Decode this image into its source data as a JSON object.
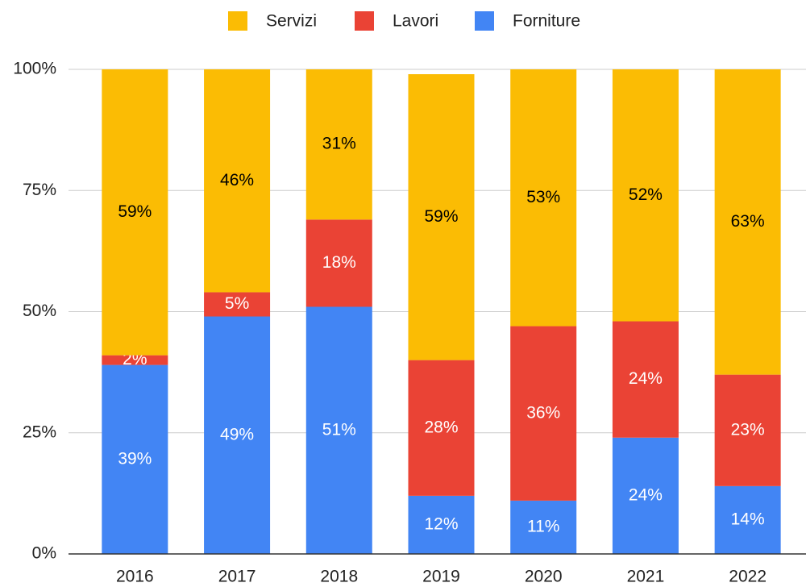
{
  "chart_data": {
    "type": "stacked_bar_100",
    "categories": [
      "2016",
      "2017",
      "2018",
      "2019",
      "2020",
      "2021",
      "2022"
    ],
    "series": [
      {
        "name": "Servizi",
        "color": "#fbbc04",
        "label_color": "#000000",
        "values": [
          59,
          46,
          31,
          59,
          53,
          52,
          63
        ],
        "value_labels": [
          "59%",
          "46%",
          "31%",
          "59%",
          "53%",
          "52%",
          "63%"
        ]
      },
      {
        "name": "Lavori",
        "color": "#ea4335",
        "label_color": "#ffffff",
        "values": [
          2,
          5,
          18,
          28,
          36,
          24,
          23
        ],
        "value_labels": [
          "2%",
          "5%",
          "18%",
          "28%",
          "36%",
          "24%",
          "23%"
        ]
      },
      {
        "name": "Forniture",
        "color": "#4285f4",
        "label_color": "#ffffff",
        "values": [
          39,
          49,
          51,
          12,
          11,
          24,
          14
        ],
        "value_labels": [
          "39%",
          "49%",
          "51%",
          "12%",
          "11%",
          "24%",
          "14%"
        ]
      }
    ],
    "ylim": [
      0,
      100
    ],
    "yticks": [
      {
        "value": 0,
        "label": "0%"
      },
      {
        "value": 25,
        "label": "25%"
      },
      {
        "value": 50,
        "label": "50%"
      },
      {
        "value": 75,
        "label": "75%"
      },
      {
        "value": 100,
        "label": "100%"
      }
    ],
    "grid": true,
    "legend": "top"
  }
}
